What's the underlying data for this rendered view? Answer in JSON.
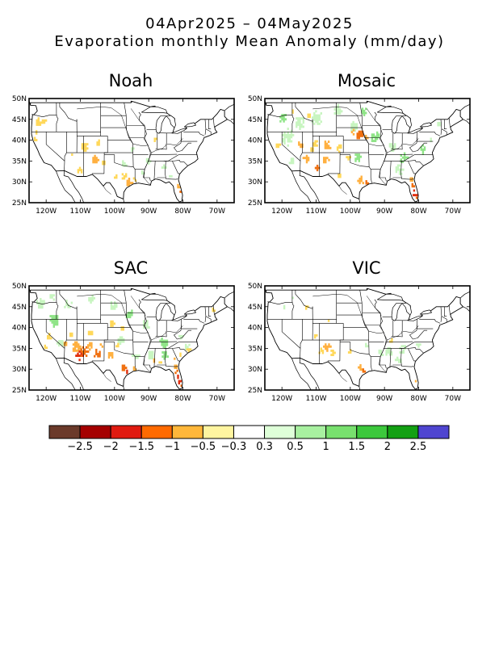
{
  "title": {
    "line1": "04Apr2025 – 04May2025",
    "line2": "Evaporation monthly Mean Anomaly (mm/day)"
  },
  "axes": {
    "lat_labels": [
      "50N",
      "45N",
      "40N",
      "35N",
      "30N",
      "25N"
    ],
    "lon_labels": [
      "120W",
      "110W",
      "100W",
      "90W",
      "80W",
      "70W"
    ]
  },
  "panels": [
    {
      "name": "Noah"
    },
    {
      "name": "Mosaic"
    },
    {
      "name": "SAC"
    },
    {
      "name": "VIC"
    }
  ],
  "colorbar": {
    "colors": [
      "#6b3a2a",
      "#a50000",
      "#e01a10",
      "#ff6a00",
      "#ffb73a",
      "#fff5a0",
      "#ffffff",
      "#deffd8",
      "#a8f0a0",
      "#78e06e",
      "#3cc83c",
      "#13a013",
      "#4f45d0"
    ],
    "labels": [
      "−2.5",
      "−2",
      "−1.5",
      "−1",
      "−0.5",
      "−0.3",
      "0.3",
      "0.5",
      "1",
      "1.5",
      "2",
      "2.5"
    ]
  },
  "anomaly_colors": {
    "dry_light": "#ffd85a",
    "dry_mid": "#ffb040",
    "dry_strong": "#f07010",
    "dry_very": "#e03010",
    "wet_light": "#c8f5c0",
    "wet_mid": "#90e488",
    "wet_strong": "#5cd055"
  }
}
